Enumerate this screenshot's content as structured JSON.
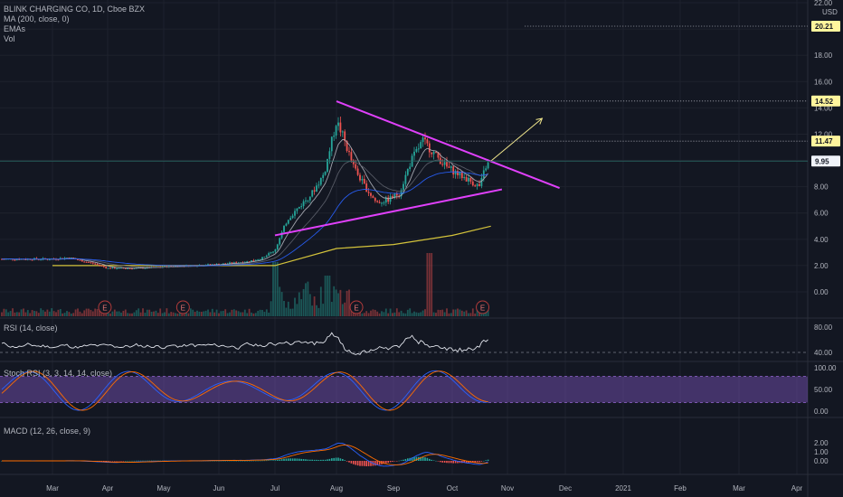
{
  "header": {
    "symbol_line": "BLINK CHARGING CO, 1D, Cboe BZX",
    "ma_label": "MA (200, close, 0)",
    "emas_label": "EMAs",
    "vol_label": "Vol",
    "currency": "USD"
  },
  "panes": {
    "rsi_label": "RSI (14, close)",
    "stoch_label": "Stoch RSI (3, 3, 14, 14, close)",
    "macd_label": "MACD (12, 26, close, 9)"
  },
  "price_axis": {
    "ticks": [
      "22.00",
      "20.00",
      "18.00",
      "16.00",
      "14.00",
      "12.00",
      "10.00",
      "8.00",
      "6.00",
      "4.00",
      "2.00",
      "0.00"
    ],
    "tags": [
      {
        "label": "20.21",
        "value": 20.21,
        "color": "#fff59d"
      },
      {
        "label": "14.52",
        "value": 14.52,
        "color": "#fff59d"
      },
      {
        "label": "11.47",
        "value": 11.47,
        "color": "#fff59d"
      },
      {
        "label": "9.95",
        "value": 9.95,
        "color": "#f0f3fa"
      }
    ]
  },
  "rsi_axis": {
    "ticks": [
      "80.00",
      "40.00"
    ]
  },
  "stoch_axis": {
    "ticks": [
      "100.00",
      "50.00",
      "0.00"
    ]
  },
  "macd_axis": {
    "ticks": [
      "2.00",
      "1.00",
      "0.00"
    ]
  },
  "time_axis": {
    "labels": [
      "Mar",
      "Apr",
      "May",
      "Jun",
      "Jul",
      "Aug",
      "Sep",
      "Oct",
      "Nov",
      "Dec",
      "2021",
      "Feb",
      "Mar",
      "Apr"
    ]
  },
  "earnings_marker": "E",
  "chart_data": {
    "type": "candlestick",
    "title": "BLINK CHARGING CO, 1D, Cboe BZX",
    "y_unit": "USD",
    "ylim": [
      0,
      22
    ],
    "x_months": [
      "Mar",
      "Apr",
      "May",
      "Jun",
      "Jul",
      "Aug",
      "Sep",
      "Oct",
      "Nov",
      "Dec",
      "2021",
      "Feb",
      "Mar",
      "Apr"
    ],
    "price_path": [
      [
        0,
        2.5
      ],
      [
        0.3,
        2.6
      ],
      [
        0.5,
        2.4
      ],
      [
        0.8,
        2.1
      ],
      [
        1.0,
        1.8
      ],
      [
        1.5,
        1.8
      ],
      [
        2.0,
        1.9
      ],
      [
        2.5,
        2.0
      ],
      [
        3.0,
        2.1
      ],
      [
        3.5,
        2.3
      ],
      [
        3.8,
        2.6
      ],
      [
        4.0,
        3.2
      ],
      [
        4.2,
        5.5
      ],
      [
        4.4,
        6.5
      ],
      [
        4.6,
        7.5
      ],
      [
        4.8,
        9.0
      ],
      [
        5.0,
        13.0
      ],
      [
        5.1,
        12.0
      ],
      [
        5.3,
        9.5
      ],
      [
        5.5,
        8.0
      ],
      [
        5.7,
        6.8
      ],
      [
        5.9,
        7.0
      ],
      [
        6.1,
        7.5
      ],
      [
        6.3,
        10.0
      ],
      [
        6.5,
        11.5
      ],
      [
        6.7,
        10.5
      ],
      [
        6.9,
        9.5
      ],
      [
        7.1,
        9.0
      ],
      [
        7.3,
        8.5
      ],
      [
        7.5,
        8.0
      ],
      [
        7.6,
        9.5
      ],
      [
        7.7,
        9.95
      ]
    ],
    "triangle": {
      "upper": [
        [
          5.0,
          14.5
        ],
        [
          8.9,
          7.9
        ]
      ],
      "lower": [
        [
          4.0,
          4.3
        ],
        [
          7.9,
          7.8
        ]
      ]
    },
    "projection_arrow": [
      [
        7.7,
        9.95
      ],
      [
        8.6,
        13.2
      ]
    ],
    "ma200": [
      [
        0,
        2.0
      ],
      [
        4.0,
        2.0
      ],
      [
        5.0,
        3.3
      ],
      [
        6.0,
        3.6
      ],
      [
        7.0,
        4.3
      ],
      [
        7.7,
        5.0
      ]
    ],
    "levels": [
      20.21,
      14.52,
      11.47,
      9.95
    ],
    "earnings_months": [
      0.95,
      2.35,
      5.35,
      7.55
    ]
  }
}
